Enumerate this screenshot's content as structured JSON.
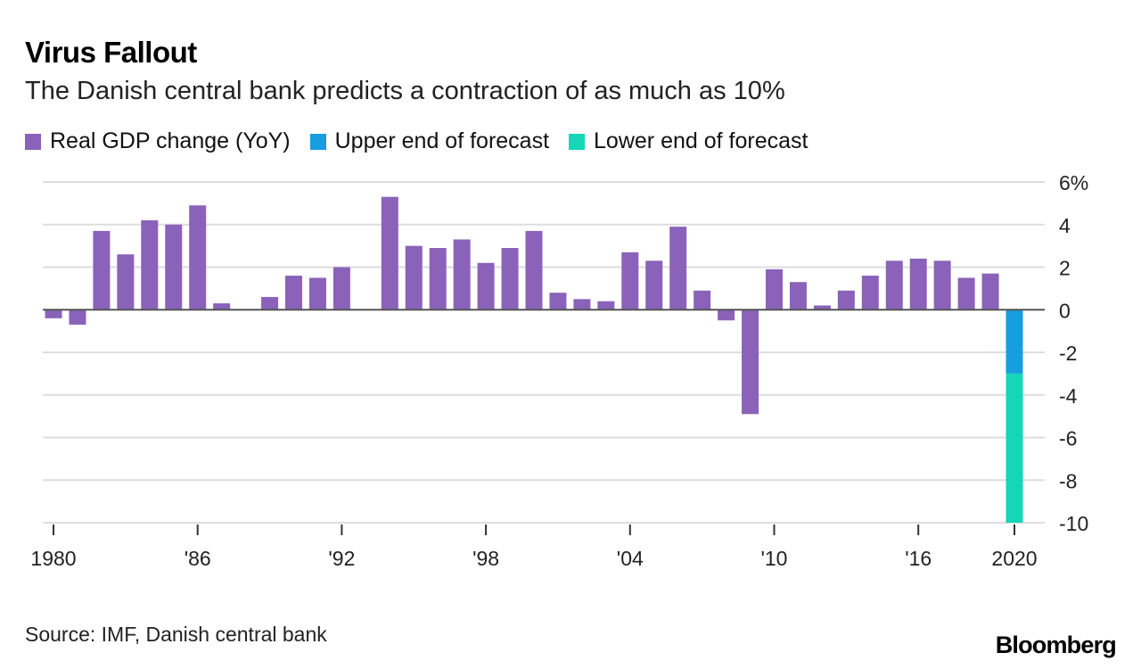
{
  "title": "Virus Fallout",
  "subtitle": "The Danish central bank predicts a contraction of as much as 10%",
  "source": "Source: IMF, Danish central bank",
  "brand": "Bloomberg",
  "colors": {
    "gdp": "#8a62b9",
    "upper": "#169ee0",
    "lower": "#15d6b7",
    "grid": "#dddddd",
    "zero": "#555555"
  },
  "chart_data": {
    "type": "bar",
    "ylim": [
      -10,
      6
    ],
    "y_ticks": [
      6,
      4,
      2,
      0,
      -2,
      -4,
      -6,
      -8,
      -10
    ],
    "y_tick_labels": [
      "6%",
      "4",
      "2",
      "0",
      "-2",
      "-4",
      "-6",
      "-8",
      "-10"
    ],
    "x_tick_years": [
      1980,
      1986,
      1992,
      1998,
      2004,
      2010,
      2016,
      2020
    ],
    "x_tick_labels": [
      "1980",
      "'86",
      "'92",
      "'98",
      "'04",
      "'10",
      "'16",
      "2020"
    ],
    "legend": [
      {
        "name": "Real GDP change (YoY)",
        "color": "#8a62b9"
      },
      {
        "name": "Upper end of forecast",
        "color": "#169ee0"
      },
      {
        "name": "Lower end of forecast",
        "color": "#15d6b7"
      }
    ],
    "series": [
      {
        "name": "Real GDP change (YoY)",
        "color": "#8a62b9",
        "years": [
          1980,
          1981,
          1982,
          1983,
          1984,
          1985,
          1986,
          1987,
          1988,
          1989,
          1990,
          1991,
          1992,
          1993,
          1994,
          1995,
          1996,
          1997,
          1998,
          1999,
          2000,
          2001,
          2002,
          2003,
          2004,
          2005,
          2006,
          2007,
          2008,
          2009,
          2010,
          2011,
          2012,
          2013,
          2014,
          2015,
          2016,
          2017,
          2018,
          2019
        ],
        "values": [
          -0.4,
          -0.7,
          3.7,
          2.6,
          4.2,
          4.0,
          4.9,
          0.3,
          0.0,
          0.6,
          1.6,
          1.5,
          2.0,
          0.0,
          5.3,
          3.0,
          2.9,
          3.3,
          2.2,
          2.9,
          3.7,
          0.8,
          0.5,
          0.4,
          2.7,
          2.3,
          3.9,
          0.9,
          -0.5,
          -4.9,
          1.9,
          1.3,
          0.2,
          0.9,
          1.6,
          2.3,
          2.4,
          2.3,
          1.5,
          1.7
        ]
      },
      {
        "name": "Upper end of forecast",
        "color": "#169ee0",
        "years": [
          2020
        ],
        "values": [
          -3.0
        ]
      },
      {
        "name": "Lower end of forecast",
        "color": "#15d6b7",
        "years": [
          2020
        ],
        "values": [
          -10.0
        ],
        "range_from": -3.0
      }
    ]
  }
}
